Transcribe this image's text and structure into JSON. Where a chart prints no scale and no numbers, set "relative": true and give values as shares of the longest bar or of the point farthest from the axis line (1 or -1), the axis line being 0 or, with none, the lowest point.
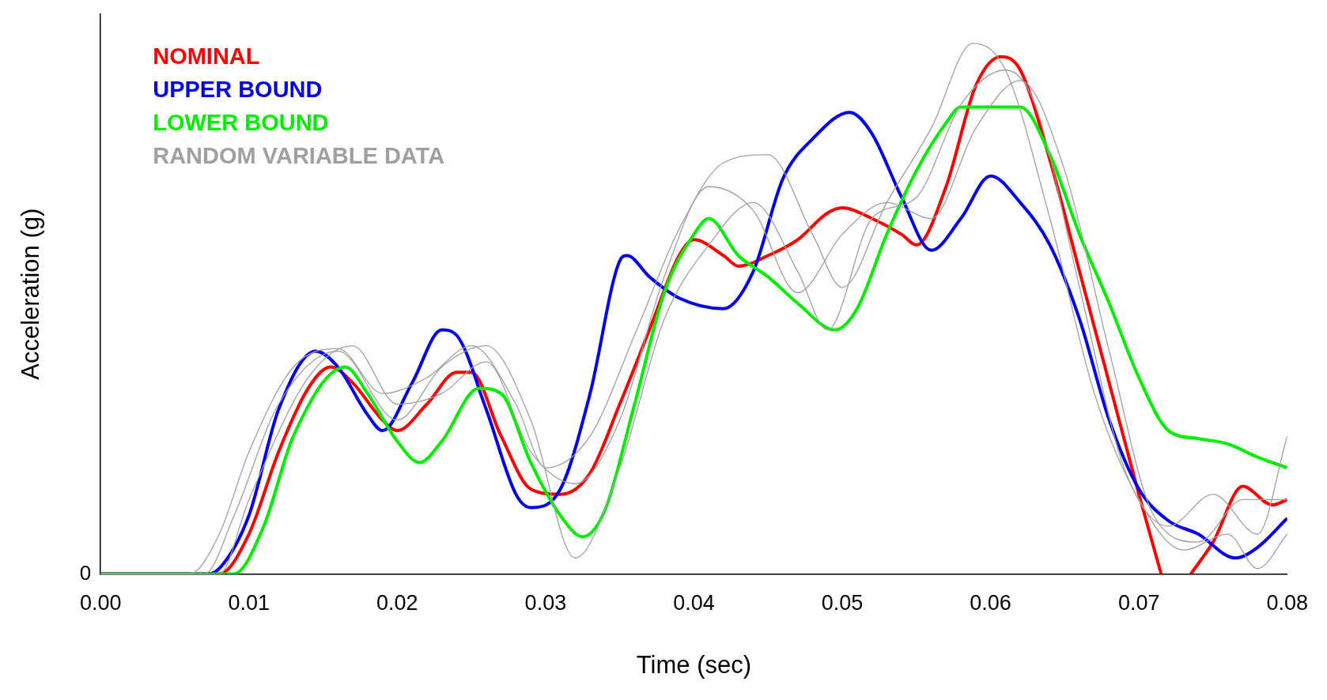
{
  "chart_data": {
    "type": "line",
    "relative": true,
    "xlabel": "Time (sec)",
    "ylabel": "Acceleration (g)",
    "legend": "top left",
    "grid": false,
    "marker": "none",
    "line_style": "solid",
    "annotations": [
      "0"
    ],
    "xlim": [
      0,
      0.08
    ],
    "xticks": [
      {
        "value": 0,
        "label": "0.00"
      },
      {
        "value": 0.01,
        "label": "0.01"
      },
      {
        "value": 0.02,
        "label": "0.02"
      },
      {
        "value": 0.03,
        "label": "0.03"
      },
      {
        "value": 0.04,
        "label": "0.04"
      },
      {
        "value": 0.05,
        "label": "0.05"
      },
      {
        "value": 0.06,
        "label": "0.06"
      },
      {
        "value": 0.07,
        "label": "0.07"
      },
      {
        "value": 0.08,
        "label": "0.08"
      }
    ],
    "series": [
      {
        "name": "RANDOM VARIABLE DATA",
        "color": "#a0a0a0",
        "x": [
          0,
          0.006,
          0.008,
          0.01,
          0.013,
          0.016,
          0.019,
          0.022,
          0.025,
          0.028,
          0.03,
          0.033,
          0.036,
          0.039,
          0.042,
          0.045,
          0.048,
          0.05,
          0.053,
          0.056,
          0.0588,
          0.061,
          0.064,
          0.067,
          0.07,
          0.073,
          0.076,
          0.078,
          0.08
        ],
        "values": [
          0,
          0,
          0.075,
          0.23,
          0.39,
          0.425,
          0.34,
          0.37,
          0.43,
          0.32,
          0.2,
          0.26,
          0.45,
          0.65,
          0.775,
          0.79,
          0.64,
          0.54,
          0.7,
          0.84,
          1,
          0.95,
          0.67,
          0.34,
          0.14,
          0.045,
          0.075,
          0.01,
          0.075
        ]
      },
      {
        "color": "#a0a0a0",
        "x": [
          0,
          0.007,
          0.009,
          0.012,
          0.016,
          0.02,
          0.023,
          0.026,
          0.029,
          0.032,
          0.035,
          0.038,
          0.041,
          0.044,
          0.047,
          0.049,
          0.052,
          0.055,
          0.058,
          0.061,
          0.063,
          0.066,
          0.069,
          0.072,
          0.075,
          0.078,
          0.08
        ],
        "values": [
          0,
          0,
          0.11,
          0.32,
          0.42,
          0.29,
          0.39,
          0.43,
          0.29,
          0.03,
          0.2,
          0.48,
          0.62,
          0.7,
          0.57,
          0.46,
          0.67,
          0.71,
          0.885,
          0.95,
          0.885,
          0.54,
          0.2,
          0.09,
          0.15,
          0.075,
          0.26
        ]
      },
      {
        "color": "#a0a0a0",
        "x": [
          0,
          0.008,
          0.01,
          0.014,
          0.017,
          0.02,
          0.023,
          0.026,
          0.029,
          0.032,
          0.035,
          0.038,
          0.041,
          0.044,
          0.047,
          0.05,
          0.053,
          0.056,
          0.059,
          0.062,
          0.065,
          0.068,
          0.071,
          0.074,
          0.077,
          0.08
        ],
        "values": [
          0,
          0,
          0.14,
          0.37,
          0.43,
          0.32,
          0.34,
          0.4,
          0.23,
          0.17,
          0.29,
          0.56,
          0.73,
          0.685,
          0.53,
          0.64,
          0.7,
          0.67,
          0.84,
          0.93,
          0.76,
          0.42,
          0.11,
          0.06,
          0.14,
          0.14
        ]
      },
      {
        "name": "LOWER BOUND",
        "color": "#00ee00",
        "x": [
          0,
          0.002,
          0.006,
          0.009,
          0.011,
          0.013,
          0.0165,
          0.018,
          0.02,
          0.0215,
          0.023,
          0.0255,
          0.027,
          0.029,
          0.031,
          0.0325,
          0.034,
          0.036,
          0.038,
          0.04,
          0.041,
          0.043,
          0.045,
          0.047,
          0.0495,
          0.051,
          0.053,
          0.055,
          0.057,
          0.058,
          0.06,
          0.062,
          0.064,
          0.066,
          0.068,
          0.07,
          0.072,
          0.074,
          0.076,
          0.078,
          0.08
        ],
        "values": [
          0,
          0,
          0,
          0,
          0.09,
          0.26,
          0.39,
          0.34,
          0.25,
          0.21,
          0.25,
          0.35,
          0.34,
          0.21,
          0.11,
          0.07,
          0.12,
          0.32,
          0.53,
          0.64,
          0.67,
          0.6,
          0.56,
          0.51,
          0.46,
          0.5,
          0.64,
          0.76,
          0.85,
          0.88,
          0.88,
          0.88,
          0.79,
          0.64,
          0.51,
          0.37,
          0.27,
          0.255,
          0.245,
          0.22,
          0.2
        ]
      },
      {
        "name": "UPPER BOUND",
        "color": "#0000ee",
        "x": [
          0,
          0.007,
          0.008,
          0.01,
          0.012,
          0.0145,
          0.016,
          0.018,
          0.019,
          0.021,
          0.023,
          0.024,
          0.026,
          0.028,
          0.029,
          0.031,
          0.033,
          0.035,
          0.0355,
          0.037,
          0.039,
          0.042,
          0.044,
          0.046,
          0.048,
          0.0505,
          0.052,
          0.054,
          0.056,
          0.058,
          0.06,
          0.062,
          0.064,
          0.066,
          0.068,
          0.07,
          0.072,
          0.074,
          0.0765,
          0.078,
          0.08
        ],
        "values": [
          0,
          0,
          0.01,
          0.11,
          0.31,
          0.42,
          0.39,
          0.3,
          0.27,
          0.36,
          0.46,
          0.45,
          0.31,
          0.15,
          0.125,
          0.16,
          0.34,
          0.59,
          0.6,
          0.56,
          0.52,
          0.5,
          0.57,
          0.745,
          0.82,
          0.87,
          0.83,
          0.71,
          0.61,
          0.67,
          0.75,
          0.7,
          0.62,
          0.48,
          0.29,
          0.16,
          0.1,
          0.075,
          0.03,
          0.05,
          0.105
        ]
      },
      {
        "name": "NOMINAL",
        "color": "#ff0000",
        "x": [
          0,
          0.006,
          0.008,
          0.01,
          0.012,
          0.014,
          0.0155,
          0.017,
          0.019,
          0.02,
          0.022,
          0.024,
          0.025,
          0.027,
          0.029,
          0.031,
          0.033,
          0.035,
          0.037,
          0.039,
          0.04,
          0.042,
          0.043,
          0.045,
          0.047,
          0.049,
          0.05,
          0.052,
          0.054,
          0.055,
          0.057,
          0.059,
          0.0607,
          0.062,
          0.064,
          0.066,
          0.068,
          0.07,
          0.0715,
          0.0725,
          0.0735,
          0.075,
          0.077,
          0.079,
          0.08
        ],
        "values": [
          0,
          0,
          0,
          0.075,
          0.23,
          0.35,
          0.39,
          0.36,
          0.29,
          0.27,
          0.32,
          0.38,
          0.38,
          0.26,
          0.16,
          0.15,
          0.19,
          0.32,
          0.46,
          0.6,
          0.63,
          0.6,
          0.58,
          0.6,
          0.63,
          0.68,
          0.69,
          0.67,
          0.64,
          0.62,
          0.73,
          0.92,
          0.975,
          0.95,
          0.78,
          0.57,
          0.36,
          0.15,
          0,
          null,
          0,
          0.06,
          0.165,
          0.13,
          0.14
        ]
      }
    ]
  }
}
